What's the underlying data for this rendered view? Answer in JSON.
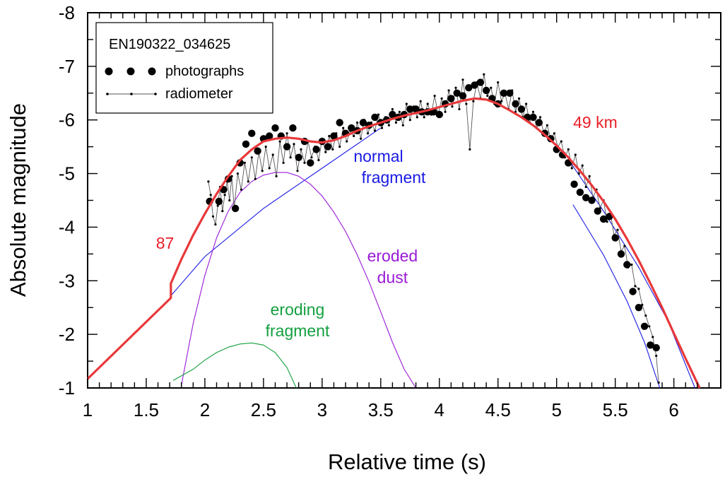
{
  "chart_data": {
    "type": "scatter",
    "xlabel": "Relative time (s)",
    "ylabel": "Absolute magnitude",
    "xlim": [
      1,
      6.4
    ],
    "ylim": [
      -1,
      -8
    ],
    "y_inverted": true,
    "x_major_ticks": [
      1,
      1.5,
      2,
      2.5,
      3,
      3.5,
      4,
      4.5,
      5,
      5.5,
      6
    ],
    "x_tick_labels": [
      "1",
      "1.5",
      "2",
      "2.5",
      "3",
      "3.5",
      "4",
      "4.5",
      "5",
      "5.5",
      "6"
    ],
    "y_major_ticks": [
      -1,
      -2,
      -3,
      -4,
      -5,
      -6,
      -7,
      -8
    ],
    "y_tick_labels": [
      "-1",
      "-2",
      "-3",
      "-4",
      "-5",
      "-6",
      "-7",
      "-8"
    ],
    "legend": {
      "title": "EN190322_034625",
      "items": [
        {
          "label": "photographs",
          "marker": "large-dot"
        },
        {
          "label": "radiometer",
          "marker": "line-with-small-dots"
        }
      ],
      "placement": "top-left"
    },
    "annotations": [
      {
        "text": "87",
        "x": 1.66,
        "y": -3.6,
        "color": "#e8202a"
      },
      {
        "text": "49 km",
        "x": 5.33,
        "y": -5.85,
        "color": "#e8202a"
      },
      {
        "text": "normal",
        "x": 3.48,
        "y": -5.22,
        "color": "#1a1ae6"
      },
      {
        "text": "fragment",
        "x": 3.61,
        "y": -4.82,
        "color": "#1a1ae6"
      },
      {
        "text": "eroded",
        "x": 3.6,
        "y": -3.36,
        "color": "#9a1ad6"
      },
      {
        "text": "dust",
        "x": 3.6,
        "y": -2.96,
        "color": "#9a1ad6"
      },
      {
        "text": "eroding",
        "x": 2.79,
        "y": -2.36,
        "color": "#14a040"
      },
      {
        "text": "fragment",
        "x": 2.79,
        "y": -1.96,
        "color": "#14a040"
      }
    ],
    "series": [
      {
        "name": "model total",
        "color": "#e8383a",
        "style": "thick-line",
        "x": [
          1.0,
          1.71,
          1.71,
          1.8,
          1.9,
          2.0,
          2.1,
          2.2,
          2.3,
          2.4,
          2.5,
          2.6,
          2.7,
          2.8,
          2.9,
          3.0,
          3.1,
          3.2,
          3.3,
          3.4,
          3.5,
          3.6,
          3.7,
          3.8,
          3.9,
          4.0,
          4.1,
          4.2,
          4.3,
          4.4,
          4.5,
          4.6,
          4.7,
          4.8,
          4.9,
          5.0,
          5.1,
          5.2,
          5.3,
          5.4,
          5.5,
          5.6,
          5.7,
          5.8,
          5.9,
          6.0,
          6.1,
          6.22
        ],
        "y": [
          -1.17,
          -2.68,
          -2.95,
          -3.4,
          -3.85,
          -4.25,
          -4.62,
          -4.95,
          -5.25,
          -5.45,
          -5.6,
          -5.65,
          -5.67,
          -5.65,
          -5.6,
          -5.58,
          -5.62,
          -5.7,
          -5.8,
          -5.88,
          -5.95,
          -6.02,
          -6.08,
          -6.13,
          -6.18,
          -6.24,
          -6.3,
          -6.36,
          -6.4,
          -6.38,
          -6.3,
          -6.18,
          -6.05,
          -5.9,
          -5.72,
          -5.52,
          -5.3,
          -5.05,
          -4.78,
          -4.48,
          -4.15,
          -3.78,
          -3.38,
          -2.95,
          -2.5,
          -2.02,
          -1.55,
          -1.0
        ]
      },
      {
        "name": "normal fragment (rise)",
        "color": "#1a1ae6",
        "style": "thin-line",
        "x": [
          1.71,
          2.0,
          2.5,
          3.0,
          3.5
        ],
        "y": [
          -2.72,
          -3.45,
          -4.35,
          -5.1,
          -5.85
        ]
      },
      {
        "name": "normal fragment (fall)",
        "color": "#1a1ae6",
        "style": "thin-line",
        "x": [
          5.12,
          5.4,
          5.7,
          5.95,
          6.18
        ],
        "y": [
          -5.2,
          -4.3,
          -3.25,
          -2.25,
          -1.0
        ]
      },
      {
        "name": "normal fragment (fall, steep)",
        "color": "#1a1ae6",
        "style": "thin-line",
        "x": [
          5.14,
          5.4,
          5.6,
          5.75,
          5.88
        ],
        "y": [
          -4.42,
          -3.48,
          -2.62,
          -1.85,
          -1.0
        ]
      },
      {
        "name": "eroded dust",
        "color": "#9a1ad6",
        "style": "thin-line",
        "x": [
          1.8,
          1.9,
          2.0,
          2.1,
          2.2,
          2.3,
          2.4,
          2.5,
          2.6,
          2.7,
          2.8,
          2.9,
          3.0,
          3.1,
          3.2,
          3.3,
          3.4,
          3.5,
          3.6,
          3.7,
          3.8
        ],
        "y": [
          -1.05,
          -2.2,
          -3.1,
          -3.8,
          -4.3,
          -4.65,
          -4.85,
          -4.97,
          -5.02,
          -5.02,
          -4.95,
          -4.8,
          -4.58,
          -4.28,
          -3.92,
          -3.48,
          -2.98,
          -2.42,
          -1.85,
          -1.35,
          -1.0
        ]
      },
      {
        "name": "eroding fragment",
        "color": "#14a040",
        "style": "thin-line",
        "x": [
          1.73,
          1.9,
          2.0,
          2.1,
          2.2,
          2.3,
          2.4,
          2.5,
          2.6,
          2.7,
          2.78
        ],
        "y": [
          -1.14,
          -1.35,
          -1.52,
          -1.66,
          -1.76,
          -1.82,
          -1.84,
          -1.8,
          -1.66,
          -1.38,
          -1.0
        ]
      },
      {
        "name": "photographs",
        "color": "#000000",
        "style": "large-dot",
        "x": [
          2.04,
          2.12,
          2.16,
          2.2,
          2.26,
          2.3,
          2.35,
          2.4,
          2.45,
          2.5,
          2.55,
          2.6,
          2.65,
          2.7,
          2.75,
          2.8,
          2.85,
          2.9,
          2.95,
          3.0,
          3.05,
          3.1,
          3.15,
          3.2,
          3.25,
          3.3,
          3.35,
          3.4,
          3.45,
          3.5,
          3.55,
          3.6,
          3.65,
          3.7,
          3.75,
          3.8,
          3.85,
          3.9,
          3.95,
          4.0,
          4.05,
          4.1,
          4.15,
          4.2,
          4.25,
          4.3,
          4.35,
          4.4,
          4.45,
          4.5,
          4.55,
          4.6,
          4.65,
          4.7,
          4.75,
          4.8,
          4.85,
          4.9,
          4.95,
          5.0,
          5.05,
          5.1,
          5.15,
          5.2,
          5.25,
          5.3,
          5.35,
          5.4,
          5.45,
          5.5,
          5.55,
          5.6,
          5.65,
          5.7,
          5.75,
          5.8,
          5.85
        ],
        "y": [
          -4.48,
          -4.48,
          -4.7,
          -4.9,
          -4.35,
          -5.2,
          -5.55,
          -5.75,
          -5.42,
          -5.65,
          -5.7,
          -5.85,
          -5.7,
          -5.5,
          -5.85,
          -5.3,
          -5.6,
          -5.2,
          -5.45,
          -5.6,
          -5.5,
          -5.7,
          -5.95,
          -5.75,
          -5.85,
          -5.8,
          -5.95,
          -5.9,
          -6.05,
          -5.95,
          -6.0,
          -6.1,
          -6.05,
          -6.1,
          -6.2,
          -6.2,
          -6.15,
          -6.15,
          -6.15,
          -6.1,
          -6.3,
          -6.4,
          -6.5,
          -6.45,
          -6.6,
          -6.65,
          -6.7,
          -6.55,
          -6.4,
          -6.3,
          -6.5,
          -6.5,
          -6.3,
          -6.2,
          -6.05,
          -6.05,
          -5.95,
          -5.75,
          -5.65,
          -5.45,
          -5.35,
          -5.2,
          -4.8,
          -4.65,
          -4.55,
          -4.5,
          -4.3,
          -4.15,
          -4.2,
          -3.8,
          -3.5,
          -3.3,
          -2.8,
          -2.5,
          -2.15,
          -1.8,
          -1.75
        ]
      },
      {
        "name": "radiometer",
        "color": "#000000",
        "style": "line-with-small-dots",
        "x": [
          2.03,
          2.05,
          2.07,
          2.09,
          2.11,
          2.13,
          2.15,
          2.17,
          2.19,
          2.21,
          2.23,
          2.25,
          2.28,
          2.31,
          2.34,
          2.37,
          2.4,
          2.43,
          2.46,
          2.49,
          2.52,
          2.55,
          2.58,
          2.61,
          2.64,
          2.67,
          2.7,
          2.73,
          2.76,
          2.79,
          2.82,
          2.85,
          2.88,
          2.91,
          2.94,
          2.97,
          3.0,
          3.03,
          3.06,
          3.09,
          3.12,
          3.15,
          3.18,
          3.21,
          3.24,
          3.27,
          3.3,
          3.33,
          3.36,
          3.39,
          3.42,
          3.45,
          3.48,
          3.51,
          3.54,
          3.57,
          3.6,
          3.63,
          3.66,
          3.69,
          3.72,
          3.75,
          3.78,
          3.81,
          3.84,
          3.87,
          3.9,
          3.93,
          3.96,
          3.99,
          4.02,
          4.05,
          4.08,
          4.11,
          4.14,
          4.17,
          4.2,
          4.23,
          4.26,
          4.29,
          4.32,
          4.35,
          4.38,
          4.41,
          4.44,
          4.47,
          4.5,
          4.53,
          4.56,
          4.59,
          4.62,
          4.65,
          4.68,
          4.71,
          4.74,
          4.77,
          4.8,
          4.83,
          4.86,
          4.89,
          4.92,
          4.95,
          4.98,
          5.01,
          5.04,
          5.07,
          5.1,
          5.13,
          5.16,
          5.19,
          5.22,
          5.25,
          5.28,
          5.31,
          5.34,
          5.37,
          5.4,
          5.43,
          5.46,
          5.49,
          5.52,
          5.55,
          5.58,
          5.61,
          5.64,
          5.67,
          5.7,
          5.73,
          5.76,
          5.79,
          5.82,
          5.85,
          5.87
        ],
        "y": [
          -4.85,
          -4.6,
          -4.2,
          -4.05,
          -4.4,
          -4.75,
          -4.3,
          -4.6,
          -4.85,
          -4.5,
          -4.95,
          -4.35,
          -5.0,
          -4.7,
          -5.2,
          -4.85,
          -5.3,
          -4.9,
          -5.4,
          -5.05,
          -5.5,
          -5.1,
          -5.35,
          -4.95,
          -5.6,
          -5.2,
          -5.75,
          -5.3,
          -5.55,
          -5.05,
          -5.45,
          -5.2,
          -5.6,
          -5.3,
          -5.5,
          -5.25,
          -5.65,
          -5.4,
          -5.7,
          -5.45,
          -5.75,
          -5.5,
          -5.85,
          -5.6,
          -5.8,
          -5.7,
          -5.95,
          -5.65,
          -6.0,
          -5.75,
          -5.95,
          -5.8,
          -6.1,
          -5.85,
          -6.05,
          -5.9,
          -6.2,
          -5.95,
          -6.15,
          -5.9,
          -6.3,
          -6.0,
          -6.25,
          -6.05,
          -6.35,
          -6.05,
          -6.3,
          -6.1,
          -6.45,
          -6.1,
          -6.4,
          -6.15,
          -6.55,
          -6.25,
          -6.6,
          -6.2,
          -6.75,
          -6.3,
          -5.45,
          -6.35,
          -6.7,
          -6.4,
          -6.85,
          -6.45,
          -6.6,
          -6.3,
          -6.7,
          -6.35,
          -6.5,
          -6.2,
          -6.55,
          -6.15,
          -6.4,
          -6.05,
          -6.3,
          -5.95,
          -6.15,
          -5.85,
          -6.05,
          -5.75,
          -5.9,
          -5.65,
          -5.75,
          -5.5,
          -5.6,
          -5.3,
          -5.45,
          -5.1,
          -5.35,
          -5.0,
          -5.15,
          -4.75,
          -4.95,
          -4.55,
          -4.7,
          -4.35,
          -4.5,
          -4.1,
          -4.25,
          -3.85,
          -3.95,
          -3.55,
          -3.65,
          -3.25,
          -3.3,
          -2.9,
          -2.85,
          -2.55,
          -2.35,
          -2.15,
          -1.95,
          -1.6,
          -1.1
        ]
      }
    ]
  }
}
